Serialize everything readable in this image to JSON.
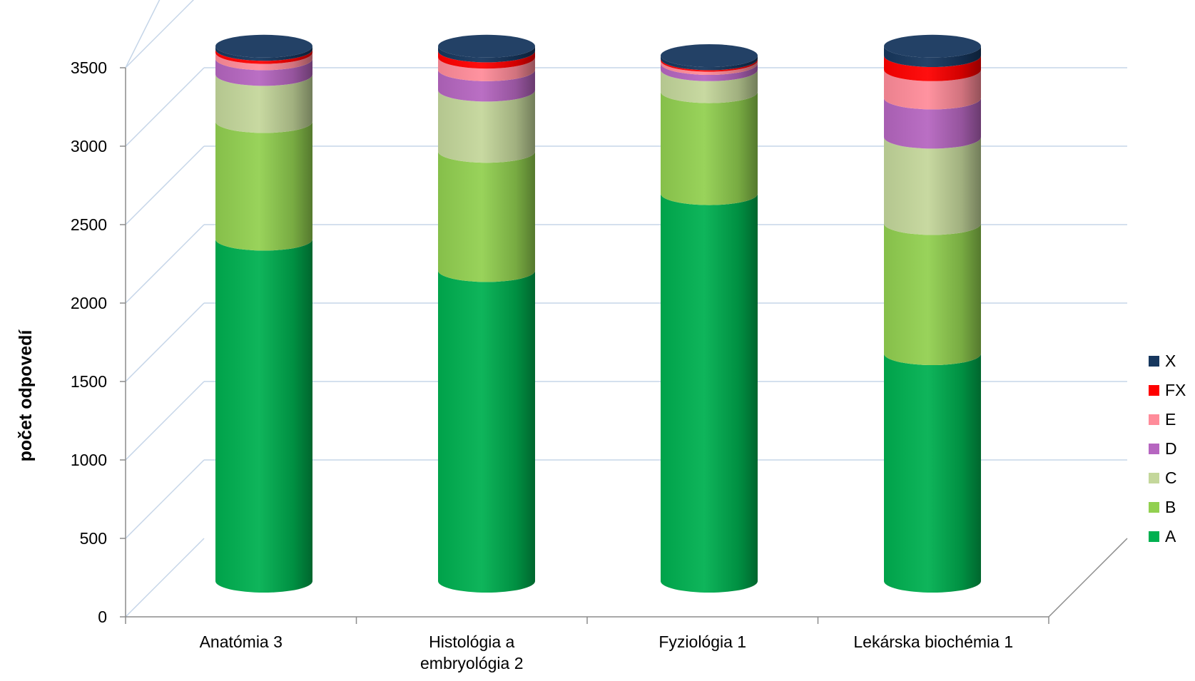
{
  "chart_data": {
    "type": "bar",
    "stacked": true,
    "style": "3d-cylinder",
    "title": "",
    "xlabel": "",
    "ylabel": "počet odpovedí",
    "ylim": [
      0,
      3500
    ],
    "yticks": [
      0,
      500,
      1000,
      1500,
      2000,
      2500,
      3000,
      3500
    ],
    "grid": true,
    "legend_position": "right",
    "categories": [
      "Anatómia 3",
      "Histológia a embryológia 2",
      "Fyziológia 1",
      "Lekárska biochémia 1"
    ],
    "category_lines": [
      [
        "Anatómia 3"
      ],
      [
        "Histológia a",
        "embryológia 2"
      ],
      [
        "Fyziológia 1"
      ],
      [
        "Lekárska biochémia 1"
      ]
    ],
    "series": [
      {
        "name": "A",
        "color": "#00B050",
        "values": [
          2180,
          1980,
          2470,
          1450
        ]
      },
      {
        "name": "B",
        "color": "#92D050",
        "values": [
          750,
          760,
          650,
          830
        ]
      },
      {
        "name": "C",
        "color": "#C4D79B",
        "values": [
          300,
          390,
          140,
          550
        ]
      },
      {
        "name": "D",
        "color": "#B666C0",
        "values": [
          100,
          130,
          40,
          250
        ]
      },
      {
        "name": "E",
        "color": "#FF8C9A",
        "values": [
          40,
          80,
          20,
          180
        ]
      },
      {
        "name": "FX",
        "color": "#FF0000",
        "values": [
          20,
          40,
          10,
          90
        ]
      },
      {
        "name": "X",
        "color": "#17375E",
        "values": [
          20,
          30,
          20,
          60
        ]
      }
    ]
  }
}
